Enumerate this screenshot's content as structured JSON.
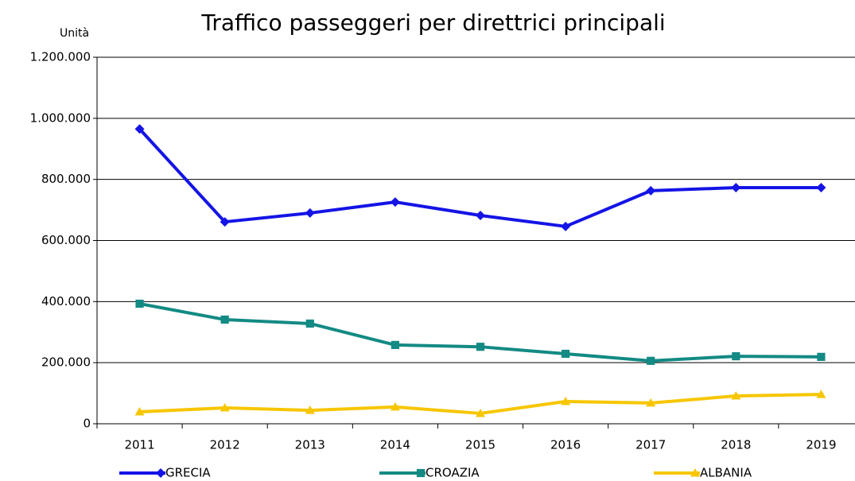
{
  "chart_data": {
    "type": "line",
    "title": "Traffico passeggeri per direttrici principali",
    "y_label": "Unità",
    "categories": [
      "2011",
      "2012",
      "2013",
      "2014",
      "2015",
      "2016",
      "2017",
      "2018",
      "2019"
    ],
    "series": [
      {
        "name": "GRECIA",
        "color": "#1414e6",
        "marker": "diamond",
        "values": [
          965000,
          661000,
          690000,
          726000,
          682000,
          646000,
          763000,
          773000,
          773000
        ]
      },
      {
        "name": "CROAZIA",
        "color": "#138a84",
        "marker": "square",
        "values": [
          393000,
          341000,
          328000,
          258000,
          252000,
          229000,
          206000,
          221000,
          219000
        ]
      },
      {
        "name": "ALBANIA",
        "color": "#f7c600",
        "marker": "triangle",
        "values": [
          39000,
          52000,
          44000,
          55000,
          34000,
          73000,
          68000,
          91000,
          96000
        ]
      }
    ],
    "ylim": [
      0,
      1200000
    ],
    "yticks": [
      0,
      {
        "value": 200000,
        "label": "200.000"
      },
      {
        "value": 400000,
        "label": "400.000"
      },
      {
        "value": 600000,
        "label": "600.000"
      },
      {
        "value": 800000,
        "label": "800.000"
      },
      {
        "value": 1000000,
        "label": "1.000.000"
      },
      {
        "value": 1200000,
        "label": "1.200.000"
      }
    ],
    "grid": true,
    "legend": "bottom"
  }
}
